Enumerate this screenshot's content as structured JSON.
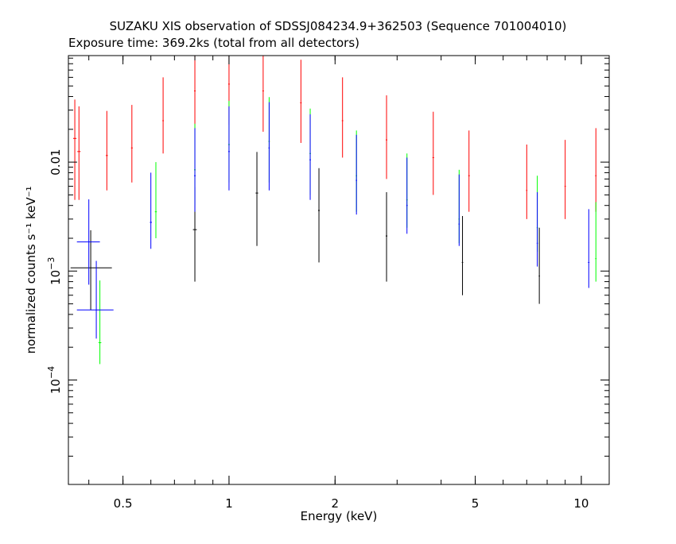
{
  "title": "SUZAKU XIS observation of SDSSJ084234.9+362503 (Sequence 701004010)",
  "subtitle": "Exposure time: 369.2ks (total from all detectors)",
  "chart_data": {
    "type": "scatter",
    "xlabel": "Energy (keV)",
    "ylabel": "normalized counts s⁻¹ keV⁻¹",
    "x_scale": "log",
    "y_scale": "log",
    "xlim": [
      0.35,
      12.0
    ],
    "ylim": [
      1.1e-05,
      0.095
    ],
    "x_ticks": [
      {
        "value": 0.5,
        "label": "0.5"
      },
      {
        "value": 1,
        "label": "1"
      },
      {
        "value": 2,
        "label": "2"
      },
      {
        "value": 5,
        "label": "5"
      },
      {
        "value": 10,
        "label": "10"
      }
    ],
    "y_ticks": [
      {
        "value": 0.01,
        "label": "0.01",
        "base": "",
        "exp": ""
      },
      {
        "value": 0.001,
        "label": "",
        "base": "10",
        "exp": "−3"
      },
      {
        "value": 0.0001,
        "label": "",
        "base": "10",
        "exp": "−4"
      }
    ],
    "series": [
      {
        "color": "#000000",
        "values": [
          {
            "x": 0.405,
            "y": 0.00107,
            "xerr": [
              0.05,
              0.06
            ],
            "yerr": [
              0.00063,
              0.0013
            ]
          },
          {
            "x": 0.8,
            "y": 0.0024,
            "xerr": [
              0.01,
              0.01
            ],
            "yerr": [
              0.0016,
              0.0035
            ]
          },
          {
            "x": 1.2,
            "y": 0.0052,
            "xerr": [
              0.01,
              0.01
            ],
            "yerr": [
              0.0035,
              0.0072
            ]
          },
          {
            "x": 1.8,
            "y": 0.0036,
            "xerr": [
              0.01,
              0.01
            ],
            "yerr": [
              0.0024,
              0.0052
            ]
          },
          {
            "x": 2.8,
            "y": 0.0021,
            "xerr": [
              0.015,
              0.015
            ],
            "yerr": [
              0.0013,
              0.0032
            ]
          },
          {
            "x": 4.6,
            "y": 0.0012,
            "xerr": [
              0.02,
              0.02
            ],
            "yerr": [
              0.0006,
              0.002
            ]
          },
          {
            "x": 7.6,
            "y": 0.0009,
            "xerr": [
              0.03,
              0.03
            ],
            "yerr": [
              0.0004,
              0.0016
            ]
          }
        ]
      },
      {
        "color": "#ff0000",
        "values": [
          {
            "x": 0.365,
            "y": 0.0165,
            "xerr": [
              0.004,
              0.004
            ],
            "yerr": [
              0.012,
              0.021
            ]
          },
          {
            "x": 0.375,
            "y": 0.0125,
            "xerr": [
              0.004,
              0.004
            ],
            "yerr": [
              0.008,
              0.02
            ]
          },
          {
            "x": 0.45,
            "y": 0.0115,
            "xerr": [
              0.003,
              0.003
            ],
            "yerr": [
              0.006,
              0.018
            ]
          },
          {
            "x": 0.53,
            "y": 0.0135,
            "xerr": [
              0.003,
              0.003
            ],
            "yerr": [
              0.007,
              0.02
            ]
          },
          {
            "x": 0.65,
            "y": 0.024,
            "xerr": [
              0.003,
              0.003
            ],
            "yerr": [
              0.012,
              0.036
            ]
          },
          {
            "x": 0.8,
            "y": 0.045,
            "xerr": [
              0.004,
              0.004
            ],
            "yerr": [
              0.025,
              0.065
            ]
          },
          {
            "x": 1.0,
            "y": 0.052,
            "xerr": [
              0.005,
              0.005
            ],
            "yerr": [
              0.03,
              0.075
            ]
          },
          {
            "x": 1.25,
            "y": 0.045,
            "xerr": [
              0.006,
              0.006
            ],
            "yerr": [
              0.026,
              0.066
            ]
          },
          {
            "x": 1.6,
            "y": 0.035,
            "xerr": [
              0.008,
              0.008
            ],
            "yerr": [
              0.02,
              0.052
            ]
          },
          {
            "x": 2.1,
            "y": 0.024,
            "xerr": [
              0.01,
              0.01
            ],
            "yerr": [
              0.013,
              0.036
            ]
          },
          {
            "x": 2.8,
            "y": 0.016,
            "xerr": [
              0.014,
              0.014
            ],
            "yerr": [
              0.009,
              0.025
            ]
          },
          {
            "x": 3.8,
            "y": 0.011,
            "xerr": [
              0.02,
              0.02
            ],
            "yerr": [
              0.006,
              0.018
            ]
          },
          {
            "x": 4.8,
            "y": 0.0075,
            "xerr": [
              0.025,
              0.025
            ],
            "yerr": [
              0.004,
              0.012
            ]
          },
          {
            "x": 7.0,
            "y": 0.0055,
            "xerr": [
              0.03,
              0.03
            ],
            "yerr": [
              0.0025,
              0.009
            ]
          },
          {
            "x": 9.0,
            "y": 0.006,
            "xerr": [
              0.04,
              0.04
            ],
            "yerr": [
              0.003,
              0.01
            ]
          },
          {
            "x": 11.0,
            "y": 0.0075,
            "xerr": [
              0.05,
              0.05
            ],
            "yerr": [
              0.004,
              0.013
            ]
          }
        ]
      },
      {
        "color": "#00ff00",
        "values": [
          {
            "x": 0.43,
            "y": 0.00022,
            "xerr": [
              0.004,
              0.004
            ],
            "yerr": [
              8e-05,
              0.0006
            ]
          },
          {
            "x": 0.62,
            "y": 0.0035,
            "xerr": [
              0.004,
              0.004
            ],
            "yerr": [
              0.0015,
              0.0065
            ]
          },
          {
            "x": 0.8,
            "y": 0.0085,
            "xerr": [
              0.004,
              0.004
            ],
            "yerr": [
              0.0045,
              0.014
            ]
          },
          {
            "x": 1.0,
            "y": 0.0145,
            "xerr": [
              0.005,
              0.005
            ],
            "yerr": [
              0.008,
              0.022
            ]
          },
          {
            "x": 1.3,
            "y": 0.0155,
            "xerr": [
              0.006,
              0.006
            ],
            "yerr": [
              0.009,
              0.024
            ]
          },
          {
            "x": 1.7,
            "y": 0.012,
            "xerr": [
              0.008,
              0.008
            ],
            "yerr": [
              0.007,
              0.019
            ]
          },
          {
            "x": 2.3,
            "y": 0.0075,
            "xerr": [
              0.01,
              0.01
            ],
            "yerr": [
              0.004,
              0.012
            ]
          },
          {
            "x": 3.2,
            "y": 0.0045,
            "xerr": [
              0.015,
              0.015
            ],
            "yerr": [
              0.002,
              0.0075
            ]
          },
          {
            "x": 4.5,
            "y": 0.003,
            "xerr": [
              0.02,
              0.02
            ],
            "yerr": [
              0.0012,
              0.0055
            ]
          },
          {
            "x": 7.5,
            "y": 0.0025,
            "xerr": [
              0.03,
              0.03
            ],
            "yerr": [
              0.001,
              0.005
            ]
          },
          {
            "x": 11.0,
            "y": 0.0013,
            "xerr": [
              0.05,
              0.05
            ],
            "yerr": [
              0.0005,
              0.003
            ]
          }
        ]
      },
      {
        "color": "#0000ff",
        "values": [
          {
            "x": 0.4,
            "y": 0.00185,
            "xerr": [
              0.03,
              0.03
            ],
            "yerr": [
              0.0011,
              0.0027
            ]
          },
          {
            "x": 0.42,
            "y": 0.00044,
            "xerr": [
              0.05,
              0.05
            ],
            "yerr": [
              0.0002,
              0.0008
            ]
          },
          {
            "x": 0.6,
            "y": 0.0028,
            "xerr": [
              0.004,
              0.004
            ],
            "yerr": [
              0.0012,
              0.0052
            ]
          },
          {
            "x": 0.8,
            "y": 0.0075,
            "xerr": [
              0.004,
              0.004
            ],
            "yerr": [
              0.004,
              0.013
            ]
          },
          {
            "x": 1.0,
            "y": 0.0125,
            "xerr": [
              0.005,
              0.005
            ],
            "yerr": [
              0.007,
              0.02
            ]
          },
          {
            "x": 1.3,
            "y": 0.0135,
            "xerr": [
              0.006,
              0.006
            ],
            "yerr": [
              0.008,
              0.022
            ]
          },
          {
            "x": 1.7,
            "y": 0.0105,
            "xerr": [
              0.008,
              0.008
            ],
            "yerr": [
              0.006,
              0.017
            ]
          },
          {
            "x": 2.3,
            "y": 0.0068,
            "xerr": [
              0.01,
              0.01
            ],
            "yerr": [
              0.0035,
              0.011
            ]
          },
          {
            "x": 3.2,
            "y": 0.004,
            "xerr": [
              0.015,
              0.015
            ],
            "yerr": [
              0.0018,
              0.007
            ]
          },
          {
            "x": 4.5,
            "y": 0.0027,
            "xerr": [
              0.02,
              0.02
            ],
            "yerr": [
              0.001,
              0.005
            ]
          },
          {
            "x": 7.5,
            "y": 0.0018,
            "xerr": [
              0.03,
              0.03
            ],
            "yerr": [
              0.0007,
              0.0035
            ]
          },
          {
            "x": 10.5,
            "y": 0.0012,
            "xerr": [
              0.05,
              0.05
            ],
            "yerr": [
              0.0005,
              0.0025
            ]
          }
        ]
      }
    ]
  }
}
